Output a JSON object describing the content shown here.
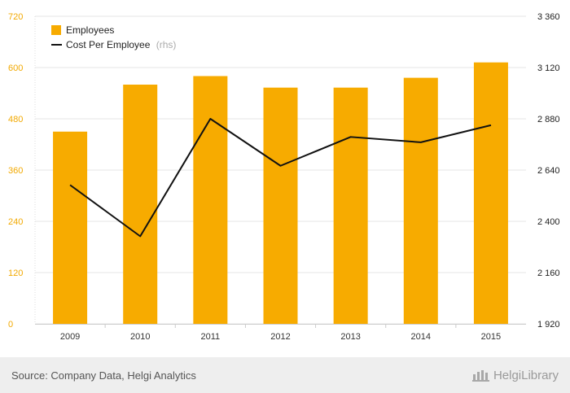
{
  "chart_data": {
    "type": "bar",
    "categories": [
      "2009",
      "2010",
      "2011",
      "2012",
      "2013",
      "2014",
      "2015"
    ],
    "series": [
      {
        "name": "Employees",
        "kind": "bar",
        "axis": "left",
        "values": [
          450,
          560,
          580,
          553,
          553,
          576,
          612
        ]
      },
      {
        "name": "Cost Per Employee",
        "name_suffix": "(rhs)",
        "kind": "line",
        "axis": "right",
        "values": [
          2570,
          2330,
          2880,
          2660,
          2795,
          2770,
          2850
        ]
      }
    ],
    "y_left": {
      "ylim": [
        0,
        720
      ],
      "ticks": [
        "0",
        "120",
        "240",
        "360",
        "480",
        "600",
        "720"
      ]
    },
    "y_right": {
      "ylim": [
        1920,
        3360
      ],
      "ticks": [
        "1 920",
        "2 160",
        "2 400",
        "2 640",
        "2 880",
        "3 120",
        "3 360"
      ]
    },
    "grid": true,
    "legend": "top-left",
    "colors": {
      "bar": "#f7ab00",
      "line": "#111111",
      "left_ticks": "#f2a900",
      "grid": "#e6e6e6"
    }
  },
  "footer": {
    "source": "Source: Company Data, Helgi Analytics",
    "brand": "HelgiLibrary",
    "brand_icon": "helgi-logo-icon"
  }
}
